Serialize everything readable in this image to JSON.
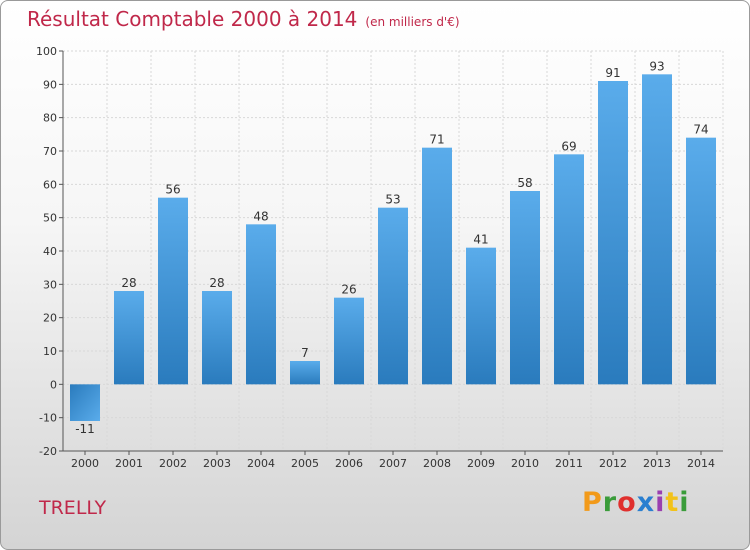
{
  "chart_data": {
    "type": "bar",
    "title": "Résultat Comptable 2000 à 2014",
    "subtitle": "(en milliers d'€)",
    "categories": [
      "2000",
      "2001",
      "2002",
      "2003",
      "2004",
      "2005",
      "2006",
      "2007",
      "2008",
      "2009",
      "2010",
      "2011",
      "2012",
      "2013",
      "2014"
    ],
    "values": [
      -11,
      28,
      56,
      28,
      48,
      7,
      26,
      53,
      71,
      41,
      58,
      69,
      91,
      93,
      74
    ],
    "ylim": [
      -20,
      100
    ],
    "yticks": [
      -20,
      -10,
      0,
      10,
      20,
      30,
      40,
      50,
      60,
      70,
      80,
      90,
      100
    ],
    "grid": true,
    "xlabel": "",
    "ylabel": ""
  },
  "footer": {
    "town": "TRELLY",
    "logo": "Proxiti",
    "logo_colors": [
      "#f29a1a",
      "#3a9c3a",
      "#e0302e",
      "#2a7fd0",
      "#9a3fb0",
      "#f2c21a",
      "#3a9c3a"
    ]
  },
  "colors": {
    "title": "#c0284a",
    "bar_top": "#5aaceb",
    "bar_bottom": "#2a7bbd"
  }
}
